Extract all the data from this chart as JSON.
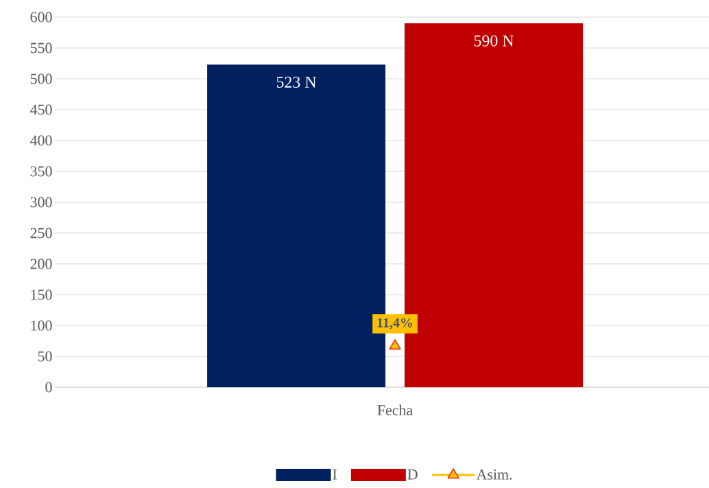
{
  "chart_data": {
    "type": "bar",
    "categories": [
      "Fecha"
    ],
    "series": [
      {
        "name": "I",
        "color": "#002060",
        "values": [
          523
        ],
        "value_labels": [
          "523 N"
        ]
      },
      {
        "name": "D",
        "color": "#c00000",
        "values": [
          590
        ],
        "value_labels": [
          "590 N"
        ]
      },
      {
        "name": "Asim.",
        "type": "line",
        "color": "#ffc000",
        "marker": "triangle",
        "values": [
          67
        ]
      }
    ],
    "ylim": [
      0,
      600
    ],
    "yticks": [
      0,
      50,
      100,
      150,
      200,
      250,
      300,
      350,
      400,
      450,
      500,
      550,
      600
    ],
    "annotations": [
      "11,4%"
    ],
    "grid": "y",
    "legend": "bottom"
  }
}
